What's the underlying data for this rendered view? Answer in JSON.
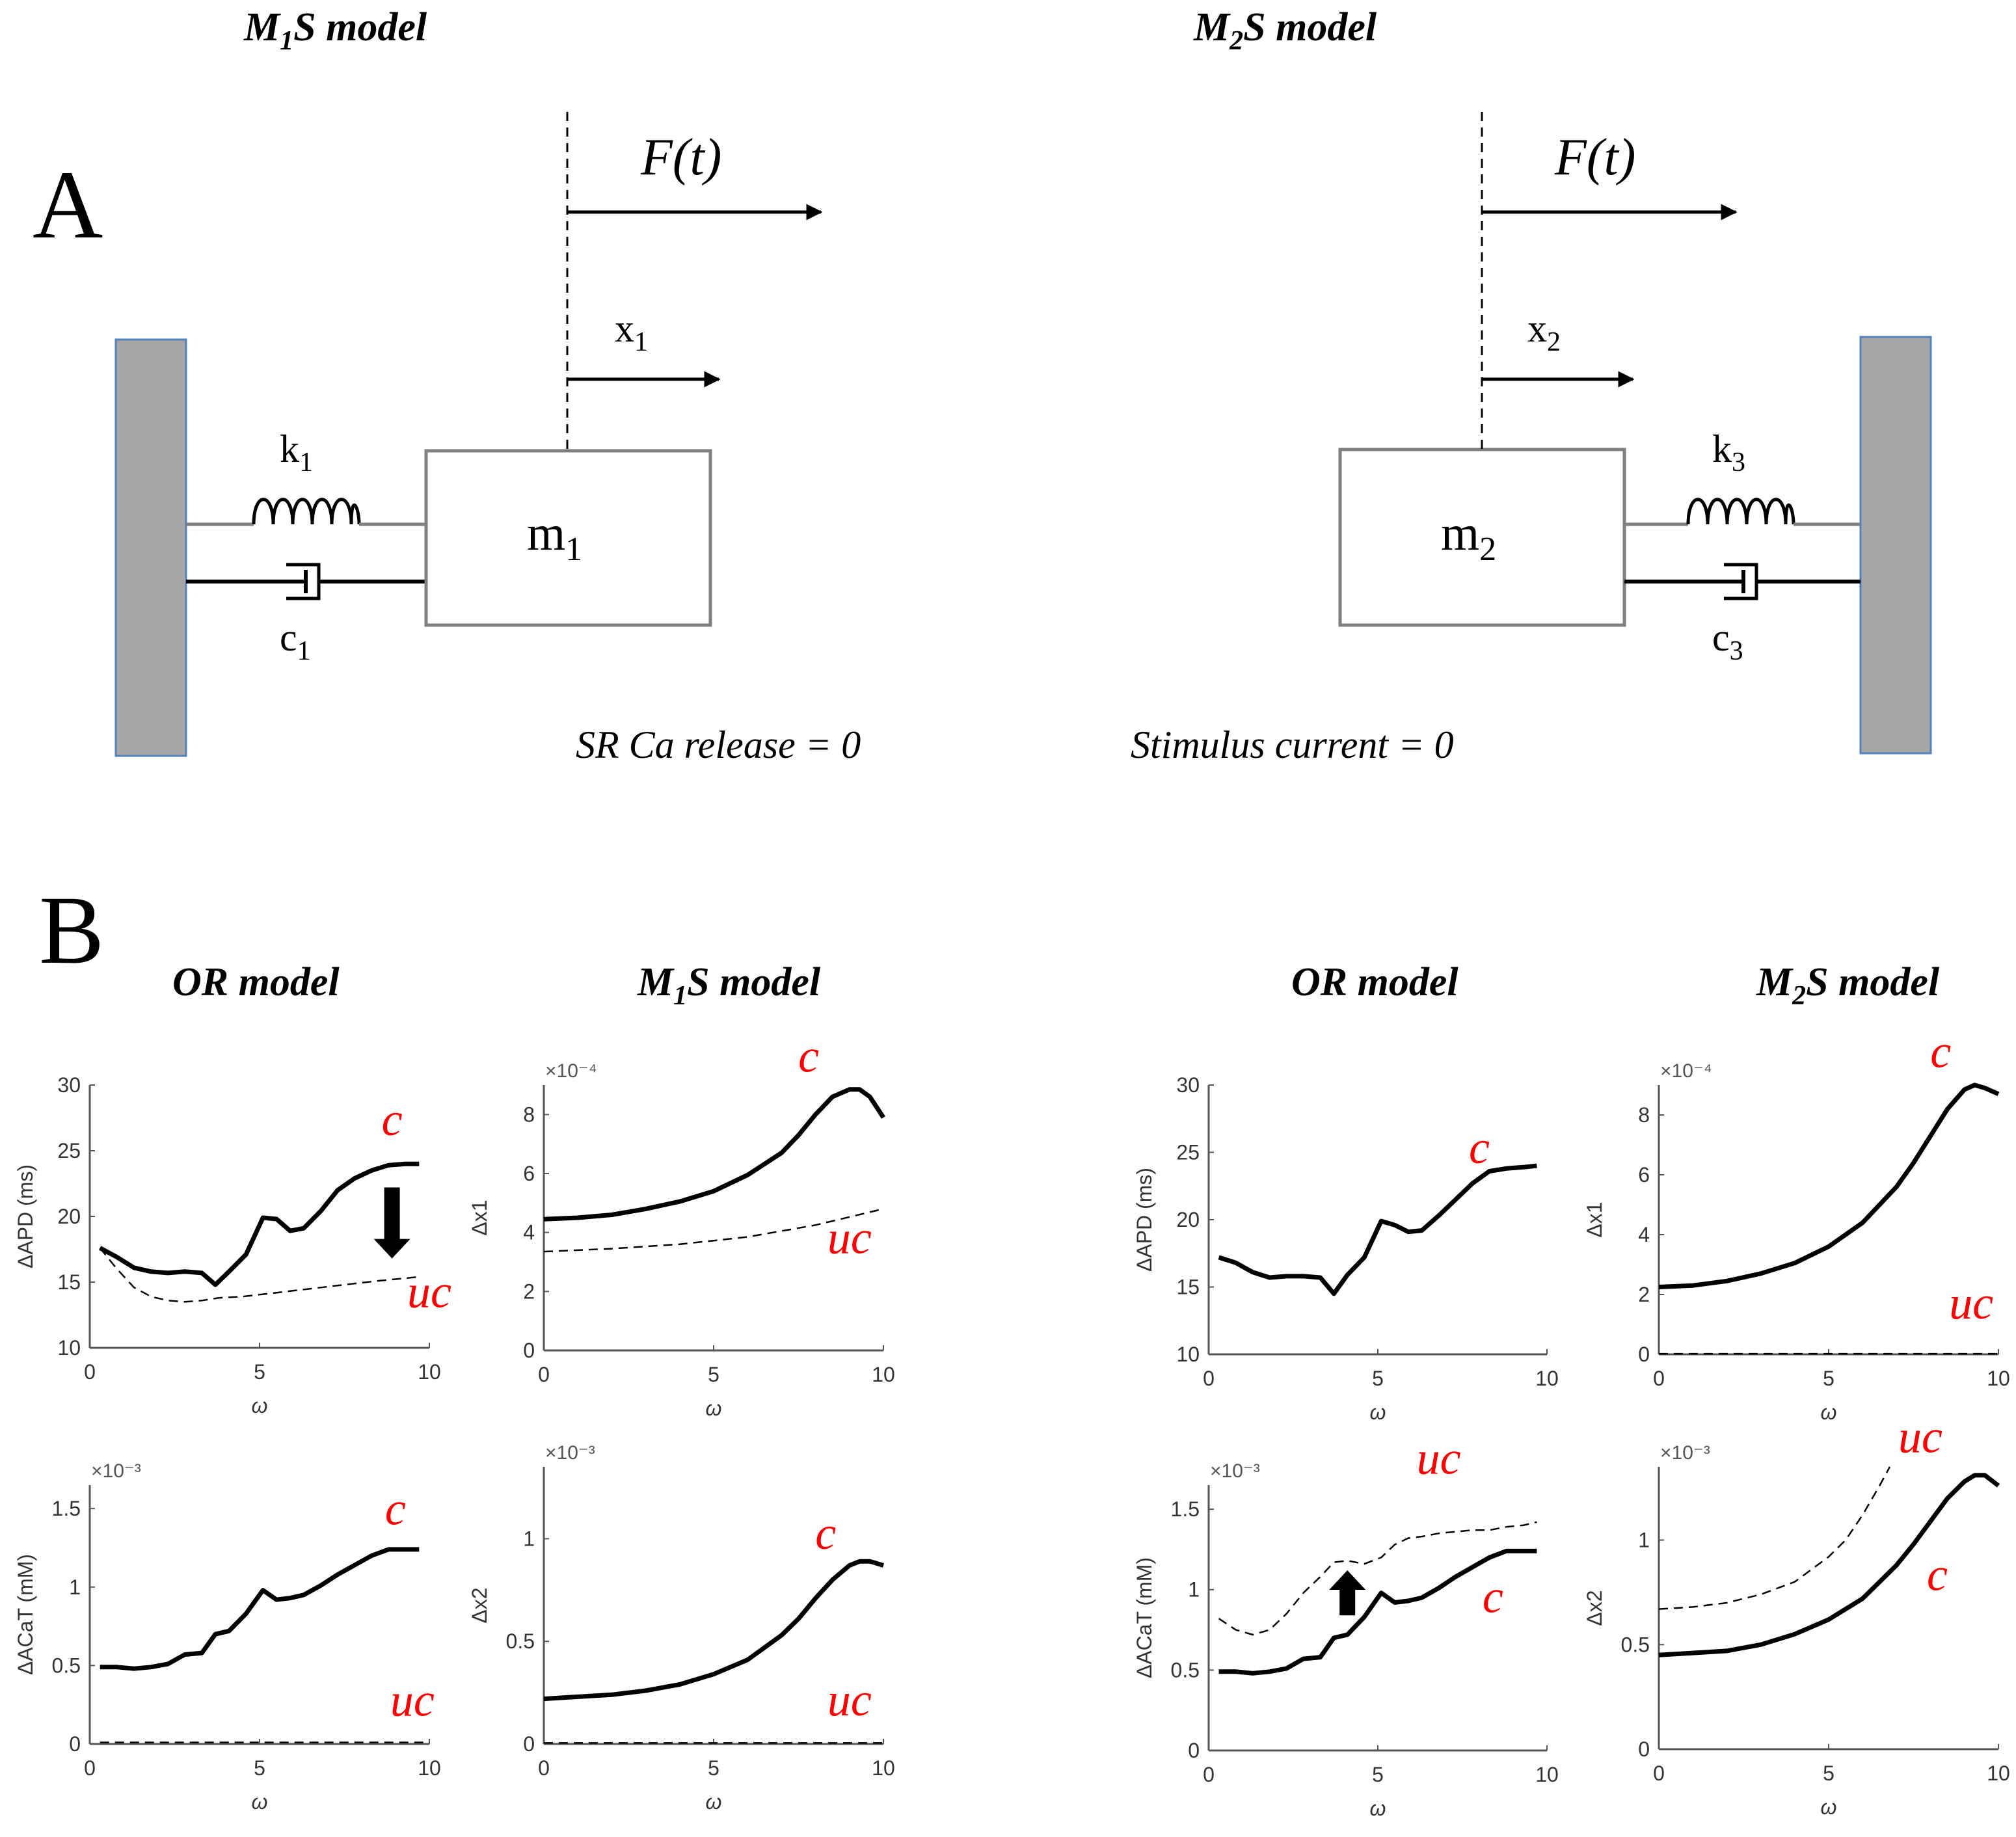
{
  "panel_a": {
    "letter": "A",
    "left": {
      "title_main": "M",
      "title_sub": "1",
      "title_rest": "S model",
      "force": "F(t)",
      "displacement": "x",
      "displacement_sub": "1",
      "spring": "k",
      "spring_sub": "1",
      "damper": "c",
      "damper_sub": "1",
      "mass": "m",
      "mass_sub": "1",
      "note": "SR Ca release = 0"
    },
    "right": {
      "title_main": "M",
      "title_sub": "2",
      "title_rest": "S model",
      "force": "F(t)",
      "displacement": "x",
      "displacement_sub": "2",
      "spring": "k",
      "spring_sub": "3",
      "damper": "c",
      "damper_sub": "3",
      "mass": "m",
      "mass_sub": "2",
      "note": "Stimulus current = 0"
    },
    "colors": {
      "wall_fill": "#a6a6a6",
      "wall_border": "#4f81bd",
      "box_border": "#808080"
    }
  },
  "panel_b": {
    "letter": "B",
    "column_titles": [
      {
        "main": "OR model",
        "sub": "",
        "rest": ""
      },
      {
        "main": "M",
        "sub": "1",
        "rest": "S model"
      },
      {
        "main": "OR model",
        "sub": "",
        "rest": ""
      },
      {
        "main": "M",
        "sub": "2",
        "rest": "S model"
      }
    ]
  },
  "chart_data": [
    {
      "type": "line",
      "xlabel": "ω",
      "ylabel": "ΔAPD (ms)",
      "xlim": [
        0,
        10
      ],
      "ylim": [
        10,
        30
      ],
      "xticks": [
        "0",
        "5",
        "10"
      ],
      "yticks": [
        "10",
        "15",
        "20",
        "25",
        "30"
      ],
      "exponent": "",
      "series": [
        {
          "name": "c",
          "style": "solid",
          "x": [
            0.3,
            0.8,
            1.3,
            1.8,
            2.3,
            2.8,
            3.3,
            3.7,
            4.1,
            4.6,
            5.1,
            5.5,
            5.9,
            6.3,
            6.8,
            7.3,
            7.8,
            8.3,
            8.8,
            9.3,
            9.7
          ],
          "y": [
            17.6,
            16.9,
            16.1,
            15.8,
            15.7,
            15.8,
            15.7,
            14.8,
            15.8,
            17.1,
            19.9,
            19.8,
            18.9,
            19.1,
            20.4,
            22.0,
            22.9,
            23.5,
            23.9,
            24.0,
            24.0
          ]
        },
        {
          "name": "uc",
          "style": "dashed",
          "x": [
            0.3,
            0.8,
            1.3,
            1.8,
            2.3,
            2.8,
            3.3,
            3.8,
            4.5,
            5.5,
            6.5,
            7.5,
            8.5,
            9.7
          ],
          "y": [
            17.6,
            16.0,
            14.6,
            13.9,
            13.6,
            13.5,
            13.6,
            13.8,
            13.9,
            14.2,
            14.5,
            14.8,
            15.1,
            15.4
          ]
        }
      ],
      "labels": [
        {
          "text": "c",
          "x": 8.9,
          "y": 26.2
        },
        {
          "text": "uc",
          "x": 10.0,
          "y": 13.1
        }
      ],
      "arrow": {
        "direction": "down",
        "x": 8.9,
        "y_from": 22.2,
        "y_to": 16.8
      }
    },
    {
      "type": "line",
      "xlabel": "ω",
      "ylabel": "Δx1",
      "xlim": [
        0,
        10
      ],
      "ylim": [
        0,
        9
      ],
      "xticks": [
        "0",
        "5",
        "10"
      ],
      "yticks": [
        "0",
        "2",
        "4",
        "6",
        "8"
      ],
      "exponent": "×10⁻⁴",
      "series": [
        {
          "name": "c",
          "style": "solid",
          "x": [
            0.0,
            1.0,
            2.0,
            3.0,
            4.0,
            5.0,
            6.0,
            7.0,
            7.5,
            8.0,
            8.5,
            9.0,
            9.3,
            9.6,
            10.0
          ],
          "y": [
            4.45,
            4.5,
            4.6,
            4.8,
            5.05,
            5.4,
            5.95,
            6.7,
            7.3,
            8.0,
            8.6,
            8.85,
            8.85,
            8.6,
            7.9
          ]
        },
        {
          "name": "uc",
          "style": "dashed",
          "x": [
            0.0,
            2.0,
            4.0,
            6.0,
            8.0,
            10.0
          ],
          "y": [
            3.35,
            3.45,
            3.6,
            3.85,
            4.25,
            4.8
          ]
        }
      ],
      "labels": [
        {
          "text": "c",
          "x": 7.8,
          "y": 9.45
        },
        {
          "text": "uc",
          "x": 9.0,
          "y": 3.3
        }
      ],
      "arrow": null
    },
    {
      "type": "line",
      "xlabel": "ω",
      "ylabel": "ΔAPD (ms)",
      "xlim": [
        0,
        10
      ],
      "ylim": [
        10,
        30
      ],
      "xticks": [
        "0",
        "5",
        "10"
      ],
      "yticks": [
        "10",
        "15",
        "20",
        "25",
        "30"
      ],
      "exponent": "",
      "series": [
        {
          "name": "c",
          "style": "solid",
          "x": [
            0.3,
            0.8,
            1.3,
            1.8,
            2.3,
            2.8,
            3.3,
            3.7,
            4.1,
            4.6,
            5.1,
            5.5,
            5.9,
            6.3,
            6.8,
            7.3,
            7.8,
            8.3,
            8.8,
            9.3,
            9.7
          ],
          "y": [
            17.2,
            16.8,
            16.1,
            15.7,
            15.8,
            15.8,
            15.7,
            14.5,
            15.9,
            17.2,
            19.9,
            19.6,
            19.1,
            19.2,
            20.3,
            21.5,
            22.7,
            23.6,
            23.8,
            23.9,
            24.0
          ]
        }
      ],
      "labels": [
        {
          "text": "c",
          "x": 8.0,
          "y": 24.2
        }
      ],
      "arrow": null
    },
    {
      "type": "line",
      "xlabel": "ω",
      "ylabel": "Δx1",
      "xlim": [
        0,
        10
      ],
      "ylim": [
        0,
        9
      ],
      "xticks": [
        "0",
        "5",
        "10"
      ],
      "yticks": [
        "0",
        "2",
        "4",
        "6",
        "8"
      ],
      "exponent": "×10⁻⁴",
      "series": [
        {
          "name": "c",
          "style": "solid",
          "x": [
            0.0,
            1.0,
            2.0,
            3.0,
            4.0,
            5.0,
            6.0,
            7.0,
            7.5,
            8.0,
            8.5,
            9.0,
            9.3,
            9.6,
            10.0
          ],
          "y": [
            2.25,
            2.3,
            2.45,
            2.7,
            3.05,
            3.6,
            4.4,
            5.6,
            6.4,
            7.3,
            8.2,
            8.85,
            9.0,
            8.9,
            8.7
          ]
        },
        {
          "name": "uc",
          "style": "dashed",
          "x": [
            0.0,
            10.0
          ],
          "y": [
            0.02,
            0.02
          ]
        }
      ],
      "labels": [
        {
          "text": "c",
          "x": 8.3,
          "y": 9.6
        },
        {
          "text": "uc",
          "x": 9.2,
          "y": 1.2
        }
      ],
      "arrow": null
    },
    {
      "type": "line",
      "xlabel": "ω",
      "ylabel": "ΔACaT (mM)",
      "xlim": [
        0,
        10
      ],
      "ylim": [
        0,
        1.65
      ],
      "xticks": [
        "0",
        "5",
        "10"
      ],
      "yticks": [
        "0",
        "0.5",
        "1",
        "1.5"
      ],
      "exponent": "×10⁻³",
      "series": [
        {
          "name": "c",
          "style": "solid",
          "x": [
            0.3,
            0.8,
            1.3,
            1.8,
            2.3,
            2.8,
            3.3,
            3.7,
            4.1,
            4.6,
            5.1,
            5.5,
            5.9,
            6.3,
            6.8,
            7.3,
            7.8,
            8.3,
            8.8,
            9.3,
            9.7
          ],
          "y": [
            0.49,
            0.49,
            0.48,
            0.49,
            0.51,
            0.57,
            0.58,
            0.7,
            0.72,
            0.83,
            0.98,
            0.92,
            0.93,
            0.95,
            1.01,
            1.08,
            1.14,
            1.2,
            1.24,
            1.24,
            1.24
          ]
        },
        {
          "name": "uc",
          "style": "dashed",
          "x": [
            0.3,
            10.0
          ],
          "y": [
            0.01,
            0.01
          ]
        }
      ],
      "labels": [
        {
          "text": "c",
          "x": 9.0,
          "y": 1.4
        },
        {
          "text": "uc",
          "x": 9.5,
          "y": 0.18
        }
      ],
      "arrow": null
    },
    {
      "type": "line",
      "xlabel": "ω",
      "ylabel": "Δx2",
      "xlim": [
        0,
        10
      ],
      "ylim": [
        0,
        1.35
      ],
      "xticks": [
        "0",
        "5",
        "10"
      ],
      "yticks": [
        "0",
        "0.5",
        "1"
      ],
      "exponent": "×10⁻³",
      "series": [
        {
          "name": "c",
          "style": "solid",
          "x": [
            0.0,
            1.0,
            2.0,
            3.0,
            4.0,
            5.0,
            6.0,
            7.0,
            7.5,
            8.0,
            8.5,
            9.0,
            9.3,
            9.6,
            10.0
          ],
          "y": [
            0.22,
            0.23,
            0.24,
            0.26,
            0.29,
            0.34,
            0.41,
            0.53,
            0.61,
            0.71,
            0.8,
            0.87,
            0.89,
            0.89,
            0.87
          ]
        },
        {
          "name": "uc",
          "style": "dashed",
          "x": [
            0.0,
            10.0
          ],
          "y": [
            0.005,
            0.005
          ]
        }
      ],
      "labels": [
        {
          "text": "c",
          "x": 8.3,
          "y": 0.95
        },
        {
          "text": "uc",
          "x": 9.0,
          "y": 0.14
        }
      ],
      "arrow": null
    },
    {
      "type": "line",
      "xlabel": "ω",
      "ylabel": "ΔACaT (mM)",
      "xlim": [
        0,
        10
      ],
      "ylim": [
        0,
        1.65
      ],
      "xticks": [
        "0",
        "5",
        "10"
      ],
      "yticks": [
        "0",
        "0.5",
        "1",
        "1.5"
      ],
      "exponent": "×10⁻³",
      "series": [
        {
          "name": "c",
          "style": "solid",
          "x": [
            0.3,
            0.8,
            1.3,
            1.8,
            2.3,
            2.8,
            3.3,
            3.7,
            4.1,
            4.6,
            5.1,
            5.5,
            5.9,
            6.3,
            6.8,
            7.3,
            7.8,
            8.3,
            8.8,
            9.3,
            9.7
          ],
          "y": [
            0.49,
            0.49,
            0.48,
            0.49,
            0.51,
            0.57,
            0.58,
            0.7,
            0.72,
            0.83,
            0.98,
            0.92,
            0.93,
            0.95,
            1.01,
            1.08,
            1.14,
            1.2,
            1.24,
            1.24,
            1.24
          ]
        },
        {
          "name": "uc",
          "style": "dashed",
          "x": [
            0.3,
            0.8,
            1.3,
            1.8,
            2.3,
            2.8,
            3.3,
            3.7,
            4.1,
            4.6,
            5.1,
            5.5,
            5.9,
            6.3,
            6.8,
            7.3,
            7.8,
            8.3,
            8.8,
            9.3,
            9.7
          ],
          "y": [
            0.82,
            0.75,
            0.72,
            0.75,
            0.85,
            0.98,
            1.08,
            1.17,
            1.18,
            1.16,
            1.2,
            1.28,
            1.32,
            1.33,
            1.35,
            1.36,
            1.37,
            1.37,
            1.39,
            1.4,
            1.42
          ]
        }
      ],
      "labels": [
        {
          "text": "uc",
          "x": 6.8,
          "y": 1.72
        },
        {
          "text": "c",
          "x": 8.4,
          "y": 0.86
        }
      ],
      "arrow": {
        "direction": "up",
        "x": 4.1,
        "y_from": 0.84,
        "y_to": 1.12
      }
    },
    {
      "type": "line",
      "xlabel": "ω",
      "ylabel": "Δx2",
      "xlim": [
        0,
        10
      ],
      "ylim": [
        0,
        1.35
      ],
      "xticks": [
        "0",
        "5",
        "10"
      ],
      "yticks": [
        "0",
        "0.5",
        "1"
      ],
      "exponent": "×10⁻³",
      "series": [
        {
          "name": "c",
          "style": "solid",
          "x": [
            0.0,
            1.0,
            2.0,
            3.0,
            4.0,
            5.0,
            6.0,
            7.0,
            7.5,
            8.0,
            8.5,
            9.0,
            9.3,
            9.6,
            10.0
          ],
          "y": [
            0.45,
            0.46,
            0.47,
            0.5,
            0.55,
            0.62,
            0.72,
            0.88,
            0.98,
            1.09,
            1.2,
            1.28,
            1.31,
            1.31,
            1.26
          ]
        },
        {
          "name": "uc",
          "style": "dashed",
          "x": [
            0.0,
            1.0,
            2.0,
            3.0,
            4.0,
            5.0,
            5.5,
            6.0,
            6.5,
            6.8
          ],
          "y": [
            0.67,
            0.68,
            0.7,
            0.74,
            0.8,
            0.92,
            1.0,
            1.12,
            1.26,
            1.35
          ]
        }
      ],
      "labels": [
        {
          "text": "uc",
          "x": 7.7,
          "y": 1.42
        },
        {
          "text": "c",
          "x": 8.2,
          "y": 0.76
        }
      ],
      "arrow": null
    }
  ]
}
